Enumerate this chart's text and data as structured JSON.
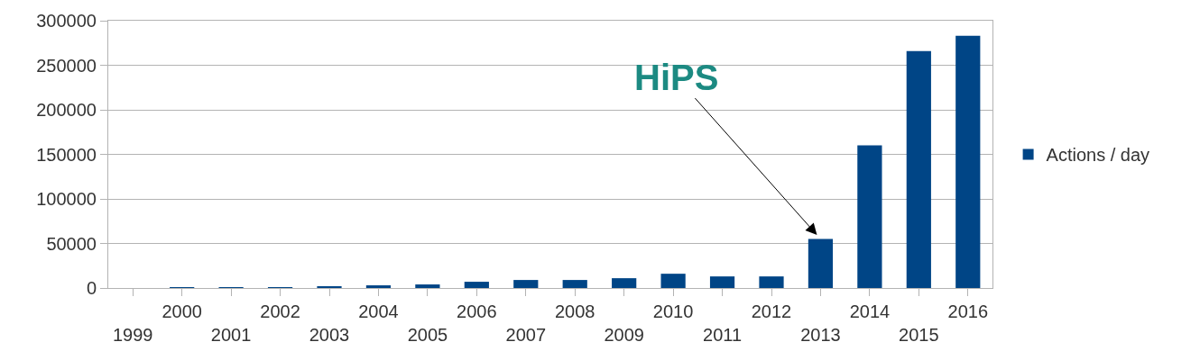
{
  "chart_data": {
    "type": "bar",
    "categories": [
      "1999",
      "2000",
      "2001",
      "2002",
      "2003",
      "2004",
      "2005",
      "2006",
      "2007",
      "2008",
      "2009",
      "2010",
      "2011",
      "2012",
      "2013",
      "2014",
      "2015",
      "2016"
    ],
    "series": [
      {
        "name": "Actions / day",
        "color": "#004586",
        "values": [
          0,
          300,
          300,
          1000,
          2000,
          3000,
          4000,
          7000,
          9000,
          9000,
          11000,
          16000,
          13000,
          13000,
          55000,
          160000,
          266000,
          283000
        ]
      }
    ],
    "ylim": [
      0,
      300000
    ],
    "yticks": [
      0,
      50000,
      100000,
      150000,
      200000,
      250000,
      300000
    ],
    "grid": "y",
    "legend": "right",
    "annotations": [
      {
        "text": "HiPS",
        "x": "2013",
        "y": 55000
      }
    ]
  }
}
